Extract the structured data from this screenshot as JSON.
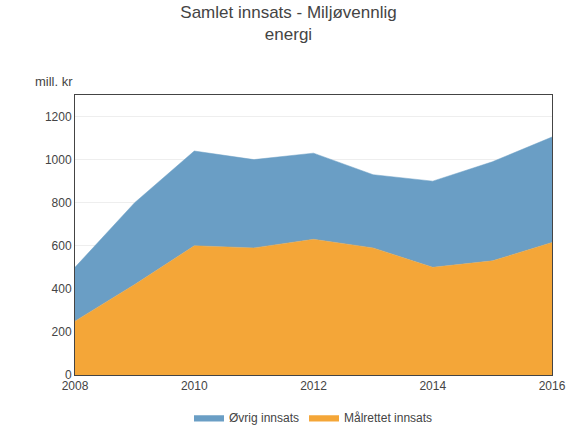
{
  "chart_data": {
    "type": "area",
    "title": "Samlet innsats - Miljøvennlig\nenergi",
    "ylabel": "mill. kr",
    "x": [
      2008,
      2009,
      2010,
      2011,
      2012,
      2013,
      2014,
      2015,
      2016
    ],
    "series": [
      {
        "name": "Målrettet innsats",
        "color": "#F4A638",
        "values": [
          250,
          420,
          600,
          590,
          630,
          590,
          500,
          530,
          615
        ]
      },
      {
        "name": "Øvrig innsats",
        "color": "#6A9EC5",
        "values": [
          250,
          380,
          440,
          410,
          400,
          340,
          400,
          460,
          490
        ]
      }
    ],
    "stacked": true,
    "xlim": [
      2008,
      2016
    ],
    "xticks": [
      2008,
      2010,
      2012,
      2014,
      2016
    ],
    "ylim": [
      0,
      1300
    ],
    "yticks": [
      0,
      200,
      400,
      600,
      800,
      1000,
      1200
    ],
    "grid": "y",
    "legend": "bottom"
  }
}
